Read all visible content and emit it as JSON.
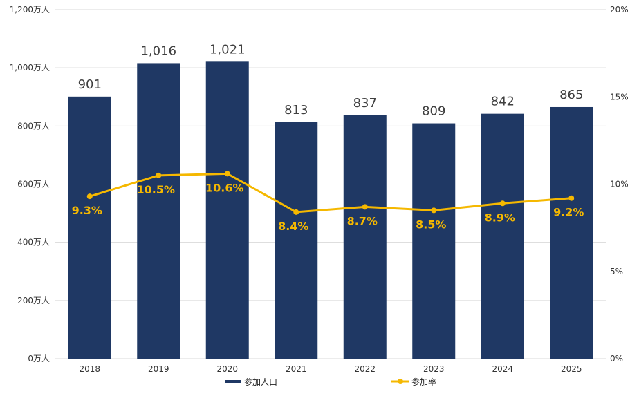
{
  "chart_data": {
    "type": "bar+line",
    "categories": [
      "2018",
      "2019",
      "2020",
      "2021",
      "2022",
      "2023",
      "2024",
      "2025"
    ],
    "series": [
      {
        "name": "参加人口",
        "type": "bar",
        "axis": "left",
        "color": "#1f3864",
        "values": [
          901,
          1016,
          1021,
          813,
          837,
          809,
          842,
          865
        ],
        "labels": [
          "901",
          "1,016",
          "1,021",
          "813",
          "837",
          "809",
          "842",
          "865"
        ]
      },
      {
        "name": "参加率",
        "type": "line",
        "axis": "right",
        "color": "#f5b800",
        "values": [
          9.3,
          10.5,
          10.6,
          8.4,
          8.7,
          8.5,
          8.9,
          9.2
        ],
        "labels": [
          "9.3%",
          "10.5%",
          "10.6%",
          "8.4%",
          "8.7%",
          "8.5%",
          "8.9%",
          "9.2%"
        ]
      }
    ],
    "y_left": {
      "range": [
        0,
        1200
      ],
      "ticks": [
        "0万人",
        "200万人",
        "400万人",
        "600万人",
        "800万人",
        "1,000万人",
        "1,200万人"
      ]
    },
    "y_right": {
      "range": [
        0,
        20
      ],
      "ticks": [
        "0%",
        "5%",
        "10%",
        "15%",
        "20%"
      ]
    },
    "grid": true,
    "legend": "bottom"
  }
}
